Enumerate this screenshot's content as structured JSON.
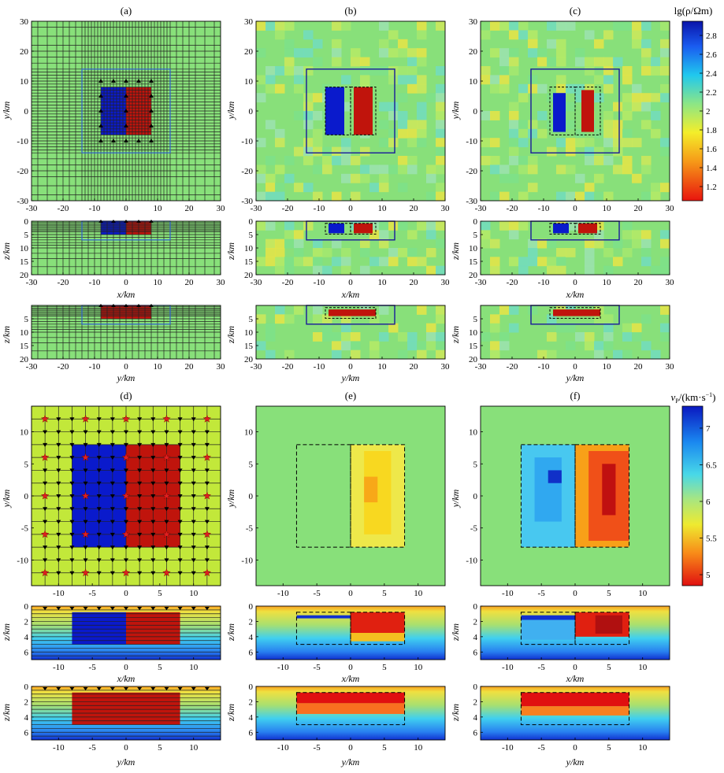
{
  "figure": {
    "colors": {
      "bg_green": "#88e07a",
      "bg_yellow_green": "#c2e83a",
      "low_blue": "#0a1acc",
      "high_red": "#c0140c",
      "grid_line": "#222222",
      "box_blue": "#1a1a99"
    },
    "resistivity_colorbar": {
      "label": "lg(ρ/Ωm)",
      "ticks": [
        "2.8",
        "2.6",
        "2.4",
        "2.2",
        "2",
        "1.8",
        "1.6",
        "1.4",
        "1.2"
      ],
      "range": [
        1.05,
        2.95
      ]
    },
    "velocity_colorbar": {
      "label_symbol": "v",
      "label_sub": "P",
      "label_rest": "/(km·s",
      "label_sup": "−1",
      "label_close": ")",
      "ticks": [
        "7",
        "6.5",
        "6",
        "5.5",
        "5"
      ],
      "range": [
        4.85,
        7.3
      ]
    },
    "panels": [
      {
        "id": "a",
        "label": "(a)"
      },
      {
        "id": "b",
        "label": "(b)"
      },
      {
        "id": "c",
        "label": "(c)"
      },
      {
        "id": "d",
        "label": "(d)"
      },
      {
        "id": "e",
        "label": "(e)"
      },
      {
        "id": "f",
        "label": "(f)"
      }
    ],
    "axes": {
      "y_km": "y/km",
      "x_km": "x/km",
      "z_km": "z/km",
      "ticks_mt_xy": [
        "-30",
        "-20",
        "-10",
        "0",
        "10",
        "20",
        "30"
      ],
      "ticks_mt_z": [
        "0",
        "5",
        "10",
        "15",
        "20"
      ],
      "ticks_mt_z_short": [
        "5",
        "10",
        "15",
        "20"
      ],
      "ticks_seis_xy": [
        "-10",
        "-5",
        "0",
        "5",
        "10"
      ],
      "ticks_seis_z": [
        "0",
        "2",
        "4",
        "6"
      ]
    }
  },
  "chart_data": [
    {
      "panel": "a",
      "type": "heatmap",
      "title": "(a)",
      "quantity": "lg(ρ/Ωm)",
      "background": 2.0,
      "bodies": [
        {
          "x": [
            -8,
            0
          ],
          "y": [
            -8,
            8
          ],
          "z": [
            0,
            5
          ],
          "value": 2.9
        },
        {
          "x": [
            0,
            8
          ],
          "y": [
            -8,
            8
          ],
          "z": [
            0,
            5
          ],
          "value": 1.1
        }
      ],
      "inversion_box": {
        "x": [
          -14,
          14
        ],
        "y": [
          -14,
          14
        ],
        "z": [
          0,
          7
        ]
      },
      "xlim": [
        -30,
        30
      ],
      "ylim": [
        -30,
        30
      ],
      "zlim": [
        0,
        20
      ]
    },
    {
      "panel": "b",
      "type": "heatmap",
      "title": "(b)",
      "quantity": "lg(ρ/Ωm)",
      "recovered_low": {
        "x": [
          -8,
          -2
        ],
        "y": [
          -8,
          8
        ],
        "value": 2.9
      },
      "recovered_high": {
        "x": [
          1,
          7
        ],
        "y": [
          -8,
          8
        ],
        "value": 1.25
      },
      "xlim": [
        -30,
        30
      ],
      "ylim": [
        -30,
        30
      ],
      "zlim": [
        0,
        20
      ]
    },
    {
      "panel": "c",
      "type": "heatmap",
      "title": "(c)",
      "quantity": "lg(ρ/Ωm)",
      "recovered_low": {
        "x": [
          -7,
          -3
        ],
        "y": [
          -7,
          6
        ],
        "value": 2.9
      },
      "recovered_high": {
        "x": [
          2,
          6
        ],
        "y": [
          -7,
          7
        ],
        "value": 1.2
      },
      "xlim": [
        -30,
        30
      ],
      "ylim": [
        -30,
        30
      ],
      "zlim": [
        0,
        20
      ]
    },
    {
      "panel": "d",
      "type": "heatmap",
      "title": "(d)",
      "quantity": "vP (km/s)",
      "background": 5.8,
      "bodies": [
        {
          "x": [
            -8,
            0
          ],
          "y": [
            -8,
            8
          ],
          "z": [
            0.8,
            5
          ],
          "value": 7.1
        },
        {
          "x": [
            0,
            8
          ],
          "y": [
            -8,
            8
          ],
          "z": [
            0.8,
            5
          ],
          "value": 5.0
        }
      ],
      "xlim": [
        -14,
        14
      ],
      "ylim": [
        -14,
        14
      ],
      "zlim": [
        0,
        7
      ]
    },
    {
      "panel": "e",
      "type": "heatmap",
      "title": "(e)",
      "quantity": "vP (km/s)",
      "recovered_high": {
        "x": [
          0,
          8
        ],
        "y": [
          -8,
          8
        ],
        "value": 5.5
      },
      "xlim": [
        -14,
        14
      ],
      "ylim": [
        -14,
        14
      ],
      "zlim": [
        0,
        7
      ]
    },
    {
      "panel": "f",
      "type": "heatmap",
      "title": "(f)",
      "quantity": "vP (km/s)",
      "recovered_low": {
        "x": [
          -8,
          0
        ],
        "y": [
          -8,
          8
        ],
        "value": 6.6
      },
      "recovered_high": {
        "x": [
          0,
          8
        ],
        "y": [
          -8,
          8
        ],
        "value": 5.1
      },
      "xlim": [
        -14,
        14
      ],
      "ylim": [
        -14,
        14
      ],
      "zlim": [
        0,
        7
      ]
    }
  ]
}
